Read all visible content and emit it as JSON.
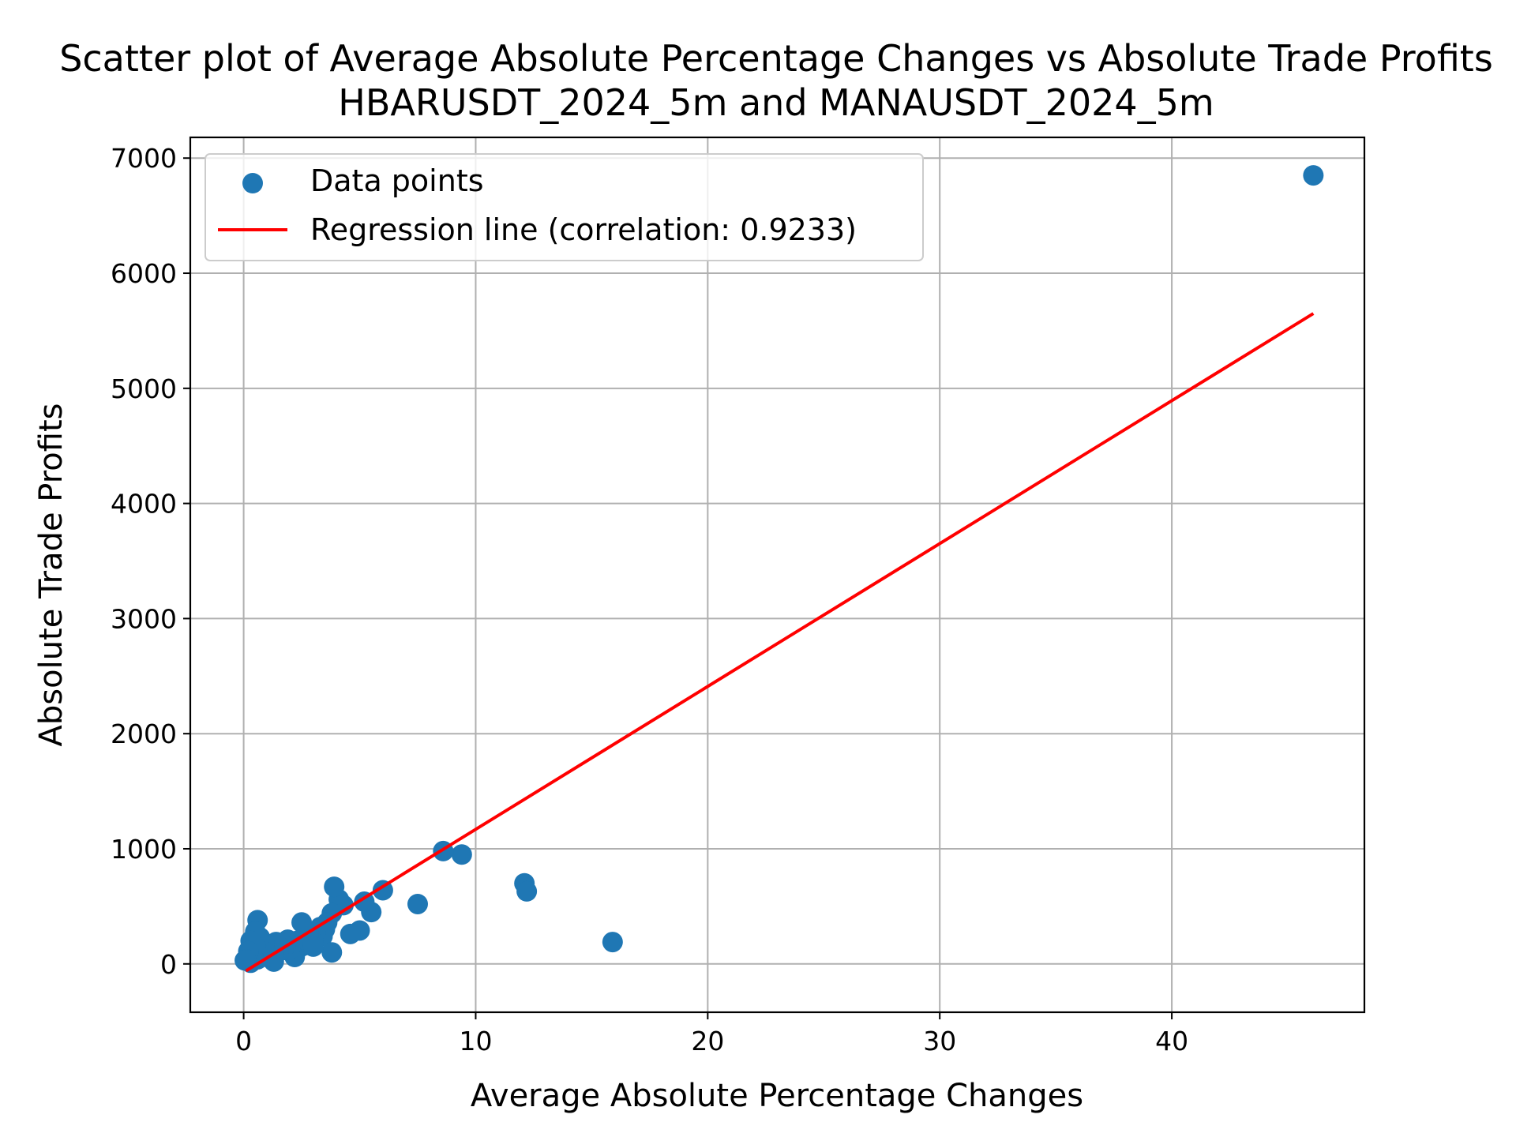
{
  "chart_data": {
    "type": "scatter",
    "title": "Scatter plot of Average Absolute Percentage Changes vs Absolute Trade Profits",
    "subtitle": "HBARUSDT_2024_5m and MANAUSDT_2024_5m",
    "xlabel": "Average Absolute Percentage Changes",
    "ylabel": "Absolute Trade Profits",
    "xlim": [
      -2.3,
      48.3
    ],
    "ylim": [
      -420,
      7180
    ],
    "xticks": [
      0,
      10,
      20,
      30,
      40
    ],
    "yticks": [
      0,
      1000,
      2000,
      3000,
      4000,
      5000,
      6000,
      7000
    ],
    "grid": true,
    "legend_position": "top-left",
    "series": [
      {
        "name": "Data points",
        "kind": "scatter",
        "color": "#1f77b4",
        "points": [
          [
            46.1,
            6850
          ],
          [
            9.4,
            950
          ],
          [
            8.6,
            980
          ],
          [
            12.1,
            700
          ],
          [
            12.2,
            630
          ],
          [
            15.9,
            190
          ],
          [
            7.5,
            520
          ],
          [
            6.0,
            640
          ],
          [
            5.5,
            450
          ],
          [
            5.2,
            540
          ],
          [
            5.0,
            290
          ],
          [
            4.6,
            260
          ],
          [
            4.3,
            510
          ],
          [
            4.1,
            560
          ],
          [
            3.9,
            670
          ],
          [
            3.8,
            440
          ],
          [
            3.6,
            360
          ],
          [
            3.5,
            300
          ],
          [
            3.4,
            240
          ],
          [
            3.3,
            320
          ],
          [
            3.1,
            260
          ],
          [
            3.0,
            200
          ],
          [
            2.9,
            220
          ],
          [
            2.8,
            260
          ],
          [
            2.6,
            160
          ],
          [
            2.5,
            360
          ],
          [
            2.5,
            200
          ],
          [
            2.4,
            140
          ],
          [
            2.3,
            200
          ],
          [
            2.2,
            60
          ],
          [
            2.1,
            170
          ],
          [
            2.0,
            130
          ],
          [
            1.9,
            210
          ],
          [
            1.8,
            150
          ],
          [
            1.7,
            120
          ],
          [
            1.6,
            180
          ],
          [
            1.5,
            110
          ],
          [
            1.4,
            190
          ],
          [
            1.3,
            90
          ],
          [
            1.3,
            20
          ],
          [
            1.2,
            150
          ],
          [
            1.1,
            110
          ],
          [
            1.0,
            60
          ],
          [
            0.9,
            170
          ],
          [
            0.8,
            130
          ],
          [
            0.7,
            230
          ],
          [
            0.7,
            90
          ],
          [
            0.6,
            380
          ],
          [
            0.6,
            40
          ],
          [
            0.5,
            150
          ],
          [
            0.5,
            280
          ],
          [
            0.4,
            70
          ],
          [
            0.3,
            10
          ],
          [
            0.3,
            200
          ],
          [
            0.2,
            110
          ],
          [
            0.1,
            40
          ],
          [
            0.05,
            30
          ],
          [
            3.8,
            100
          ],
          [
            3.0,
            150
          ]
        ]
      },
      {
        "name": "Regression line (correlation: 0.9233)",
        "kind": "line",
        "color": "#ff0000",
        "points": [
          [
            0.1,
            -60
          ],
          [
            46.1,
            5650
          ]
        ]
      }
    ]
  }
}
